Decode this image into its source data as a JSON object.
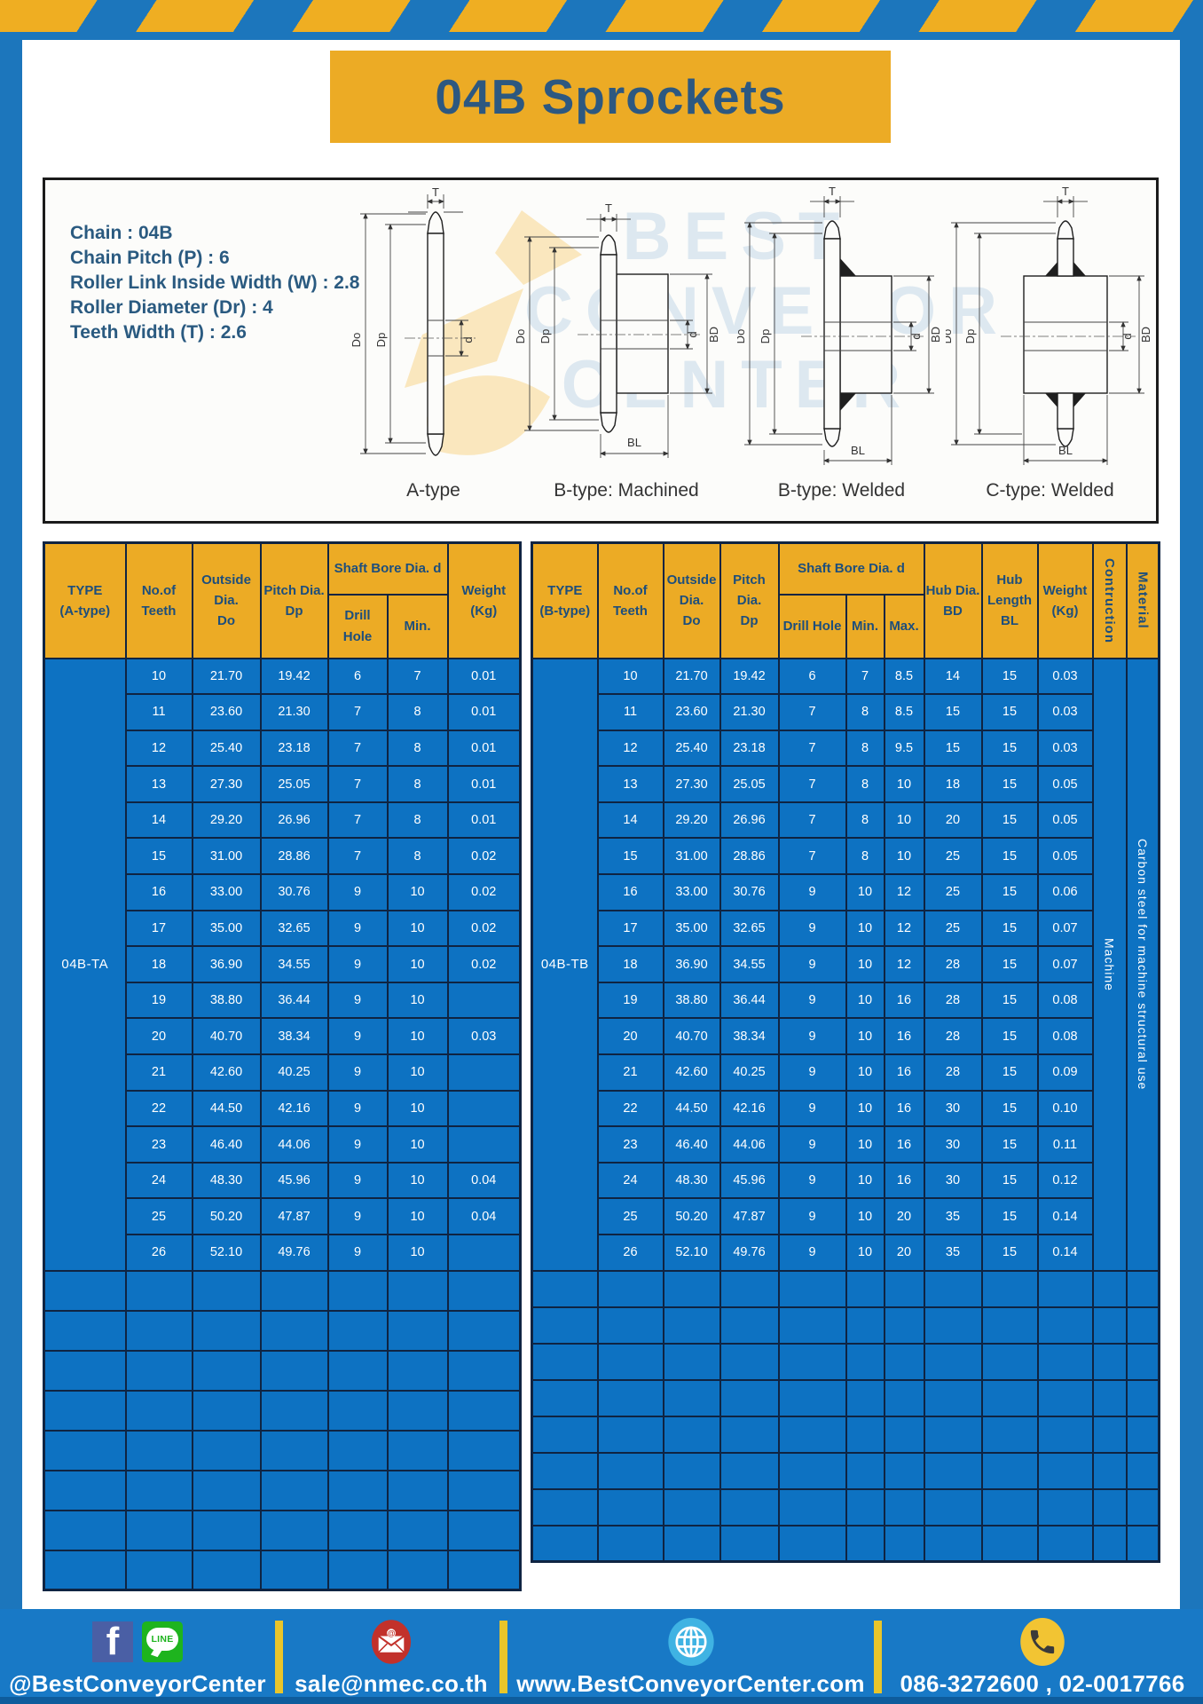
{
  "title": "04B Sprockets",
  "specs": {
    "lines": [
      "Chain : 04B",
      "Chain Pitch (P) : 6",
      "Roller Link Inside Width (W) : 2.8",
      "Roller Diameter (Dr) : 4",
      "Teeth Width (T) : 2.6"
    ]
  },
  "diagrams": {
    "captions": [
      "A-type",
      "B-type: Machined",
      "B-type: Welded",
      "C-type: Welded"
    ],
    "dims": {
      "t": "T",
      "do": "Do",
      "dp": "Dp",
      "d": "d",
      "bd": "BD",
      "bl": "BL"
    },
    "watermark_lines": "BEST\nCONVEYOR\nCENTER"
  },
  "tables": {
    "left": {
      "headers": {
        "type": "TYPE\n(A-type)",
        "teeth": "No.of\nTeeth",
        "outside": "Outside\nDia.\nDo",
        "pitch": "Pitch Dia.\nDp",
        "shaft": "Shaft Bore Dia. d",
        "drill": "Drill Hole",
        "min": "Min.",
        "weight": "Weight\n(Kg)"
      },
      "type_label": "04B-TA",
      "rows": [
        [
          "10",
          "21.70",
          "19.42",
          "6",
          "7",
          "0.01"
        ],
        [
          "11",
          "23.60",
          "21.30",
          "7",
          "8",
          "0.01"
        ],
        [
          "12",
          "25.40",
          "23.18",
          "7",
          "8",
          "0.01"
        ],
        [
          "13",
          "27.30",
          "25.05",
          "7",
          "8",
          "0.01"
        ],
        [
          "14",
          "29.20",
          "26.96",
          "7",
          "8",
          "0.01"
        ],
        [
          "15",
          "31.00",
          "28.86",
          "7",
          "8",
          "0.02"
        ],
        [
          "16",
          "33.00",
          "30.76",
          "9",
          "10",
          "0.02"
        ],
        [
          "17",
          "35.00",
          "32.65",
          "9",
          "10",
          "0.02"
        ],
        [
          "18",
          "36.90",
          "34.55",
          "9",
          "10",
          "0.02"
        ],
        [
          "19",
          "38.80",
          "36.44",
          "9",
          "10",
          ""
        ],
        [
          "20",
          "40.70",
          "38.34",
          "9",
          "10",
          "0.03"
        ],
        [
          "21",
          "42.60",
          "40.25",
          "9",
          "10",
          ""
        ],
        [
          "22",
          "44.50",
          "42.16",
          "9",
          "10",
          ""
        ],
        [
          "23",
          "46.40",
          "44.06",
          "9",
          "10",
          ""
        ],
        [
          "24",
          "48.30",
          "45.96",
          "9",
          "10",
          "0.04"
        ],
        [
          "25",
          "50.20",
          "47.87",
          "9",
          "10",
          "0.04"
        ],
        [
          "26",
          "52.10",
          "49.76",
          "9",
          "10",
          ""
        ]
      ],
      "empty_rows": 8
    },
    "right": {
      "headers": {
        "type": "TYPE\n(B-type)",
        "teeth": "No.of\nTeeth",
        "outside": "Outside\nDia.\nDo",
        "pitch": "Pitch Dia.\nDp",
        "shaft": "Shaft Bore Dia. d",
        "drill": "Drill Hole",
        "min": "Min.",
        "max": "Max.",
        "hub_dia": "Hub Dia.\nBD",
        "hub_len": "Hub\nLength\nBL",
        "weight": "Weight\n(Kg)",
        "construction": "Contruction",
        "material": "Material"
      },
      "type_label": "04B-TB",
      "construction_value": "Machine",
      "material_value": "Carbon steel for machine structural use",
      "rows": [
        [
          "10",
          "21.70",
          "19.42",
          "6",
          "7",
          "8.5",
          "14",
          "15",
          "0.03"
        ],
        [
          "11",
          "23.60",
          "21.30",
          "7",
          "8",
          "8.5",
          "15",
          "15",
          "0.03"
        ],
        [
          "12",
          "25.40",
          "23.18",
          "7",
          "8",
          "9.5",
          "15",
          "15",
          "0.03"
        ],
        [
          "13",
          "27.30",
          "25.05",
          "7",
          "8",
          "10",
          "18",
          "15",
          "0.05"
        ],
        [
          "14",
          "29.20",
          "26.96",
          "7",
          "8",
          "10",
          "20",
          "15",
          "0.05"
        ],
        [
          "15",
          "31.00",
          "28.86",
          "7",
          "8",
          "10",
          "25",
          "15",
          "0.05"
        ],
        [
          "16",
          "33.00",
          "30.76",
          "9",
          "10",
          "12",
          "25",
          "15",
          "0.06"
        ],
        [
          "17",
          "35.00",
          "32.65",
          "9",
          "10",
          "12",
          "25",
          "15",
          "0.07"
        ],
        [
          "18",
          "36.90",
          "34.55",
          "9",
          "10",
          "12",
          "28",
          "15",
          "0.07"
        ],
        [
          "19",
          "38.80",
          "36.44",
          "9",
          "10",
          "16",
          "28",
          "15",
          "0.08"
        ],
        [
          "20",
          "40.70",
          "38.34",
          "9",
          "10",
          "16",
          "28",
          "15",
          "0.08"
        ],
        [
          "21",
          "42.60",
          "40.25",
          "9",
          "10",
          "16",
          "28",
          "15",
          "0.09"
        ],
        [
          "22",
          "44.50",
          "42.16",
          "9",
          "10",
          "16",
          "30",
          "15",
          "0.10"
        ],
        [
          "23",
          "46.40",
          "44.06",
          "9",
          "10",
          "16",
          "30",
          "15",
          "0.11"
        ],
        [
          "24",
          "48.30",
          "45.96",
          "9",
          "10",
          "16",
          "30",
          "15",
          "0.12"
        ],
        [
          "25",
          "50.20",
          "47.87",
          "9",
          "10",
          "20",
          "35",
          "15",
          "0.14"
        ],
        [
          "26",
          "52.10",
          "49.76",
          "9",
          "10",
          "20",
          "35",
          "15",
          "0.14"
        ]
      ],
      "empty_rows": 8
    }
  },
  "footer": {
    "handle": "@BestConveyorCenter",
    "email": "sale@nmec.co.th",
    "website": "www.BestConveyorCenter.com",
    "phone": "086-3272600 , 02-0017766",
    "facebook_letter": "f",
    "line_text": "LINE"
  },
  "colors": {
    "frame_blue": "#1C76BC",
    "header_gold": "#ECAB25",
    "cell_blue": "#0D72C2",
    "border_navy": "#0F2442",
    "footer_blue": "#1879C6",
    "text_navy": "#2A5A80",
    "stripe_yellow": "#EFAE22"
  }
}
